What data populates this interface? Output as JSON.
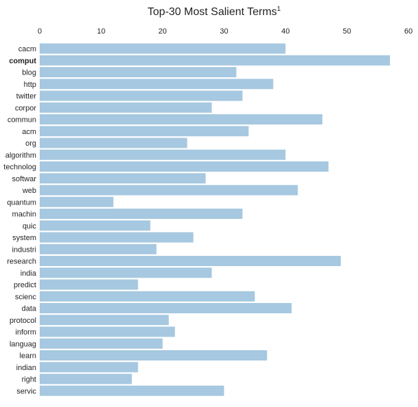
{
  "chart_data": {
    "type": "bar",
    "orientation": "horizontal",
    "title": "Top-30 Most Salient Terms",
    "title_superscript": "1",
    "xlim": [
      0,
      60
    ],
    "xticks": [
      0,
      10,
      20,
      30,
      40,
      50,
      60
    ],
    "x_axis_position": "top",
    "grid": false,
    "bar_color": "#a6c8e0",
    "highlighted_category": "comput",
    "categories": [
      "cacm",
      "comput",
      "blog",
      "http",
      "twitter",
      "corpor",
      "commun",
      "acm",
      "org",
      "algorithm",
      "technolog",
      "softwar",
      "web",
      "quantum",
      "machin",
      "quic",
      "system",
      "industri",
      "research",
      "india",
      "predict",
      "scienc",
      "data",
      "protocol",
      "inform",
      "languag",
      "learn",
      "indian",
      "right",
      "servic"
    ],
    "values": [
      40,
      57,
      32,
      38,
      33,
      28,
      46,
      34,
      24,
      40,
      47,
      27,
      42,
      12,
      33,
      18,
      25,
      19,
      49,
      28,
      16,
      35,
      41,
      21,
      22,
      20,
      37,
      16,
      15,
      30
    ]
  }
}
